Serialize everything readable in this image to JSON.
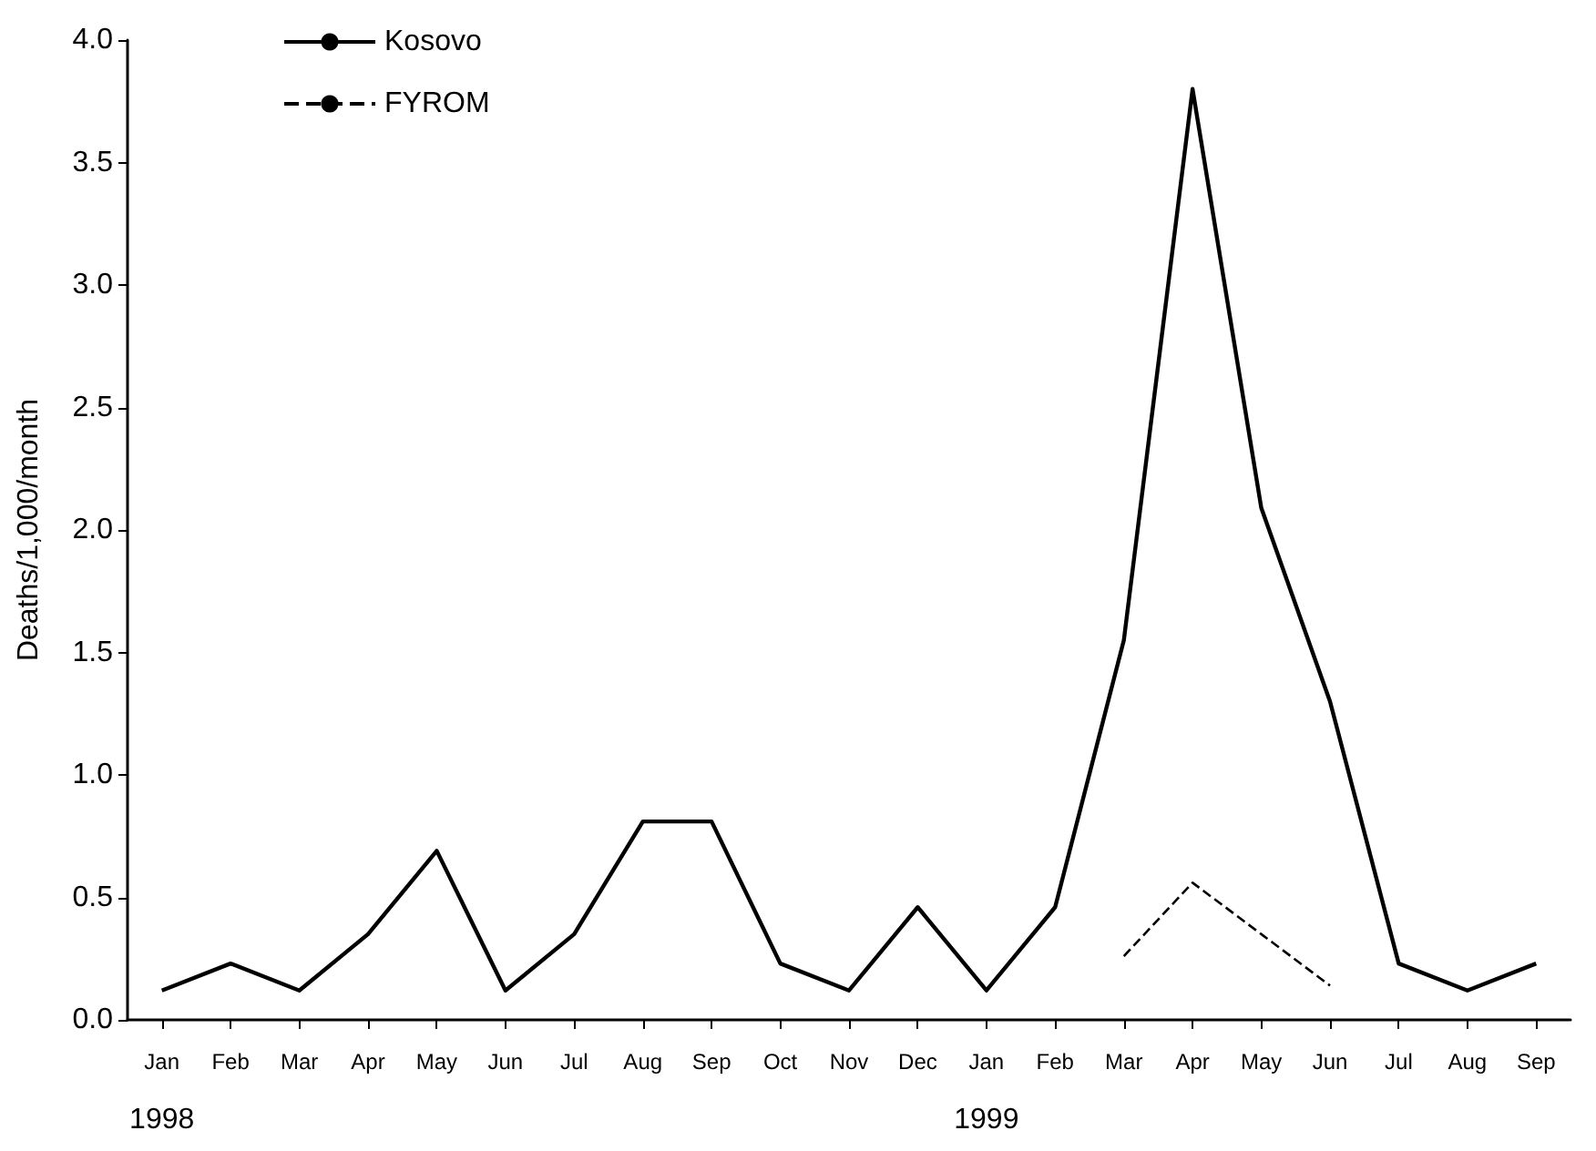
{
  "chart_data": {
    "type": "line",
    "ylabel": "Deaths/1,000/month",
    "categories": [
      "Jan\n1998",
      "Feb",
      "Mar",
      "Apr",
      "May",
      "Jun",
      "Jul",
      "Aug",
      "Sep",
      "Oct",
      "Nov",
      "Dec",
      "Jan\n1999",
      "Feb",
      "Mar",
      "Apr",
      "May",
      "Jun",
      "Jul",
      "Aug",
      "Sep"
    ],
    "series": [
      {
        "name": "Kosovo",
        "color": "#000000",
        "line_style": "solid",
        "values": [
          0.12,
          0.23,
          0.12,
          0.35,
          0.69,
          0.12,
          0.35,
          0.81,
          0.81,
          0.23,
          0.12,
          0.46,
          0.12,
          0.46,
          1.55,
          3.8,
          2.09,
          1.3,
          0.23,
          0.12,
          0.23
        ]
      },
      {
        "name": "FYROM",
        "color": "#000000",
        "line_style": "dashed",
        "values": [
          null,
          null,
          null,
          null,
          null,
          null,
          null,
          null,
          null,
          null,
          null,
          null,
          null,
          null,
          0.26,
          0.56,
          0.35,
          0.14,
          null,
          null,
          null
        ]
      }
    ],
    "ylim": [
      0,
      4
    ],
    "yticks": [
      {
        "value": 0,
        "label": "0.0"
      },
      0.5,
      {
        "value": 1,
        "label": "1.0"
      },
      1.5,
      {
        "value": 2,
        "label": "2.0"
      },
      2.5,
      {
        "value": 3,
        "label": "3.0"
      },
      3.5,
      {
        "value": 4,
        "label": "4.0"
      }
    ],
    "grid": false,
    "legend": "top left",
    "marker": "none"
  }
}
